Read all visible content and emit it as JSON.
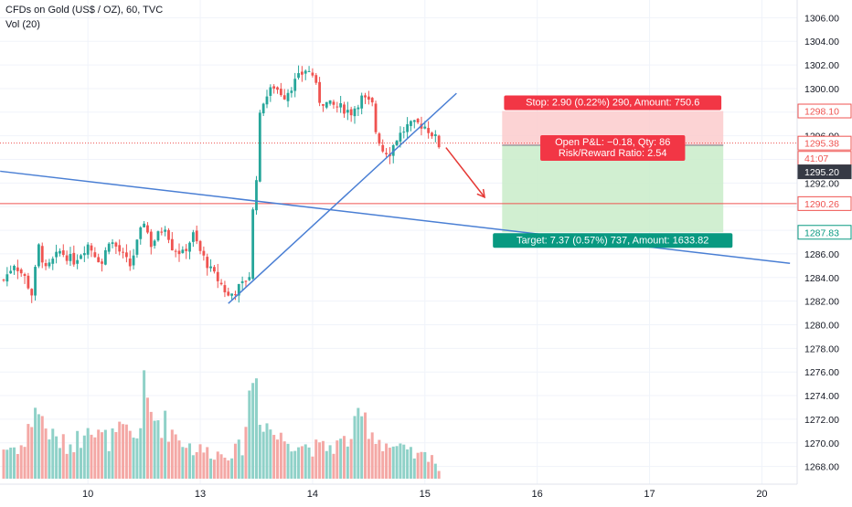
{
  "header": {
    "title": "CFDs on Gold (US$ / OZ), 60, TVC",
    "volume_label": "Vol (20)"
  },
  "colors": {
    "up": "#26a69a",
    "down": "#ef5350",
    "up_vol": "#8fd1c8",
    "down_vol": "#f4a8a5",
    "trendline": "#4a7fd4",
    "stop_zone": "#fccbcd",
    "target_zone": "#c9ecc9",
    "current_price": "#ef5350",
    "stop_tag": "#f23645",
    "target_tag": "#089981",
    "entry_tag": "#363a45"
  },
  "chart_data": {
    "type": "candlestick",
    "symbol": "CFDs on Gold (US$ / OZ)",
    "interval": "60",
    "ylim": [
      1266.5,
      1307.5
    ],
    "y_ticks": [
      1268,
      1270,
      1272,
      1274,
      1276,
      1278,
      1280,
      1282,
      1284,
      1286,
      1288,
      1290,
      1292,
      1294,
      1296,
      1298,
      1300,
      1302,
      1304,
      1306
    ],
    "x_ticks": [
      {
        "label": "10",
        "bar": 24
      },
      {
        "label": "13",
        "bar": 56
      },
      {
        "label": "14",
        "bar": 88
      },
      {
        "label": "15",
        "bar": 120
      },
      {
        "label": "16",
        "bar": 152
      },
      {
        "label": "17",
        "bar": 184
      },
      {
        "label": "20",
        "bar": 216
      }
    ],
    "price_anchors": [
      [
        0,
        1283.8
      ],
      [
        3,
        1285.2
      ],
      [
        6,
        1284.0
      ],
      [
        8,
        1282.6
      ],
      [
        10,
        1286.6
      ],
      [
        12,
        1284.6
      ],
      [
        16,
        1286.2
      ],
      [
        20,
        1285.4
      ],
      [
        24,
        1286.8
      ],
      [
        28,
        1285.2
      ],
      [
        30,
        1287.2
      ],
      [
        32,
        1286.6
      ],
      [
        36,
        1285.0
      ],
      [
        40,
        1288.8
      ],
      [
        42,
        1286.8
      ],
      [
        46,
        1288.4
      ],
      [
        48,
        1286.6
      ],
      [
        51,
        1286.0
      ],
      [
        54,
        1287.6
      ],
      [
        56,
        1286.2
      ],
      [
        59,
        1284.6
      ],
      [
        62,
        1283.4
      ],
      [
        64,
        1282.4
      ],
      [
        68,
        1283.4
      ],
      [
        70,
        1284.2
      ],
      [
        71,
        1289.6
      ],
      [
        72,
        1292.6
      ],
      [
        73,
        1297.6
      ],
      [
        74,
        1299.0
      ],
      [
        77,
        1300.2
      ],
      [
        80,
        1299.4
      ],
      [
        83,
        1300.6
      ],
      [
        86,
        1301.6
      ],
      [
        88,
        1301.2
      ],
      [
        90,
        1299.0
      ],
      [
        93,
        1298.6
      ],
      [
        96,
        1298.4
      ],
      [
        99,
        1298.0
      ],
      [
        102,
        1299.2
      ],
      [
        105,
        1298.6
      ],
      [
        106,
        1296.4
      ],
      [
        108,
        1294.8
      ],
      [
        110,
        1294.6
      ],
      [
        112,
        1295.8
      ],
      [
        115,
        1296.8
      ],
      [
        118,
        1297.0
      ],
      [
        120,
        1296.8
      ],
      [
        122,
        1296.2
      ],
      [
        123,
        1295.8
      ],
      [
        124,
        1295.2
      ]
    ],
    "volume_anchors": [
      [
        0,
        0.22
      ],
      [
        6,
        0.24
      ],
      [
        9,
        0.55
      ],
      [
        11,
        0.42
      ],
      [
        14,
        0.3
      ],
      [
        18,
        0.24
      ],
      [
        22,
        0.3
      ],
      [
        24,
        0.5
      ],
      [
        26,
        0.32
      ],
      [
        30,
        0.28
      ],
      [
        34,
        0.34
      ],
      [
        38,
        0.3
      ],
      [
        40,
        0.62
      ],
      [
        42,
        0.46
      ],
      [
        46,
        0.4
      ],
      [
        50,
        0.3
      ],
      [
        54,
        0.22
      ],
      [
        58,
        0.2
      ],
      [
        62,
        0.18
      ],
      [
        66,
        0.2
      ],
      [
        68,
        0.24
      ],
      [
        70,
        0.58
      ],
      [
        71,
        0.78
      ],
      [
        72,
        0.72
      ],
      [
        73,
        0.5
      ],
      [
        75,
        0.4
      ],
      [
        78,
        0.3
      ],
      [
        82,
        0.28
      ],
      [
        86,
        0.24
      ],
      [
        90,
        0.22
      ],
      [
        94,
        0.24
      ],
      [
        98,
        0.28
      ],
      [
        102,
        0.44
      ],
      [
        104,
        0.4
      ],
      [
        106,
        0.3
      ],
      [
        110,
        0.24
      ],
      [
        114,
        0.2
      ],
      [
        118,
        0.16
      ],
      [
        122,
        0.18
      ],
      [
        124,
        0.06
      ]
    ],
    "trendlines": [
      {
        "name": "descending",
        "from": [
          -1,
          1293.0
        ],
        "to": [
          224,
          1285.2
        ]
      },
      {
        "name": "ascending",
        "from": [
          64,
          1281.8
        ],
        "to": [
          129,
          1299.6
        ]
      }
    ],
    "price_lines": [
      {
        "name": "current",
        "price": 1295.38,
        "style": "dotted"
      },
      {
        "name": "resistance",
        "price": 1290.26,
        "style": "solid"
      }
    ],
    "position": {
      "type": "short",
      "start_bar": 142,
      "end_bar": 205,
      "stop": 1298.1,
      "entry": 1295.2,
      "target": 1287.83,
      "stop_label": "Stop: 2.90 (0.22%) 290, Amount: 750.6",
      "target_label": "Target: 7.37 (0.57%) 737, Amount: 1633.82",
      "pnl_label": "Open P&L: −0.18, Qty: 86",
      "rr_label": "Risk/Reward Ratio: 2.54"
    },
    "arrow": {
      "from": [
        126,
        1295.0
      ],
      "to": [
        137,
        1290.8
      ]
    },
    "price_tags": [
      {
        "name": "stop",
        "label": "1298.10",
        "price": 1298.1,
        "style": "outline-red"
      },
      {
        "name": "current",
        "label": "1295.38",
        "price": 1295.38,
        "style": "outline-red"
      },
      {
        "name": "countdown",
        "label": "41:07",
        "price": 1294.1,
        "style": "outline-red"
      },
      {
        "name": "entry",
        "label": "1295.20",
        "price": 1292.95,
        "style": "dark"
      },
      {
        "name": "resistance",
        "label": "1290.26",
        "price": 1290.26,
        "style": "outline-red"
      },
      {
        "name": "target",
        "label": "1287.83",
        "price": 1287.83,
        "style": "outline-green"
      }
    ]
  }
}
